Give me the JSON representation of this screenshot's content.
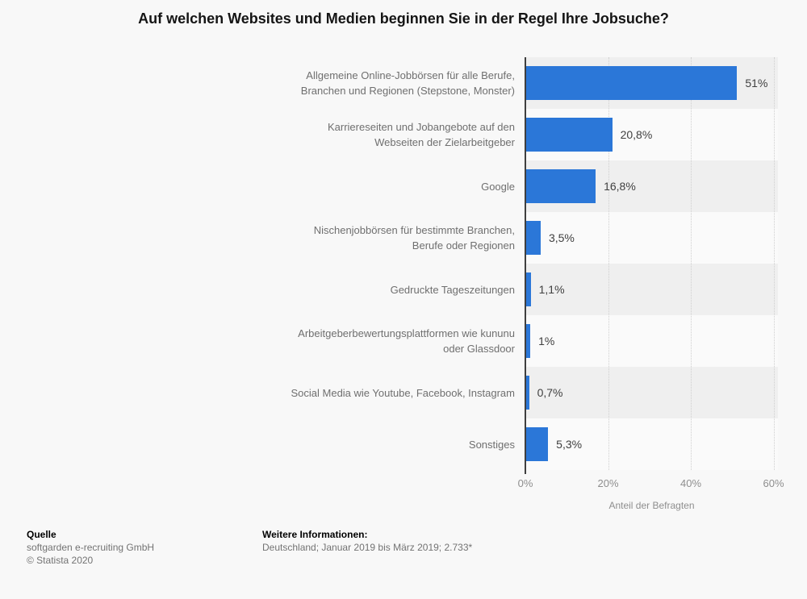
{
  "page": {
    "background": "#f8f8f8"
  },
  "chart_data": {
    "type": "bar",
    "orientation": "horizontal",
    "title": "Auf welchen Websites und Medien beginnen Sie in der Regel Ihre Jobsuche?",
    "categories": [
      "Allgemeine Online-Jobbörsen für alle Berufe,\nBranchen und Regionen (Stepstone, Monster)",
      "Karriereseiten und Jobangebote auf den\nWebseiten der Zielarbeitgeber",
      "Google",
      "Nischenjobbörsen für bestimmte Branchen,\nBerufe oder Regionen",
      "Gedruckte Tageszeitungen",
      "Arbeitgeberbewertungsplattformen wie kununu\noder Glassdoor",
      "Social Media wie Youtube, Facebook, Instagram",
      "Sonstiges"
    ],
    "values": [
      51,
      20.8,
      16.8,
      3.5,
      1.1,
      1,
      0.7,
      5.3
    ],
    "value_labels": [
      "51%",
      "20,8%",
      "16,8%",
      "3,5%",
      "1,1%",
      "1%",
      "0,7%",
      "5,3%"
    ],
    "xlabel": "Anteil der Befragten",
    "x_ticks": [
      {
        "label": "0%",
        "value": 0
      },
      {
        "label": "20%",
        "value": 20
      },
      {
        "label": "40%",
        "value": 40
      },
      {
        "label": "60%",
        "value": 60
      }
    ],
    "xlim": [
      0,
      60
    ],
    "grid": "vertical-dotted",
    "legend": "none",
    "bar_color": "#2b77d8",
    "row_band_colors": [
      "#efefef",
      "#fafafa"
    ]
  },
  "footer": {
    "source_heading": "Quelle",
    "source_company": "softgarden e-recruiting GmbH",
    "copyright": "© Statista 2020",
    "info_heading": "Weitere Informationen:",
    "info_text": "Deutschland; Januar 2019 bis März 2019; 2.733*"
  }
}
